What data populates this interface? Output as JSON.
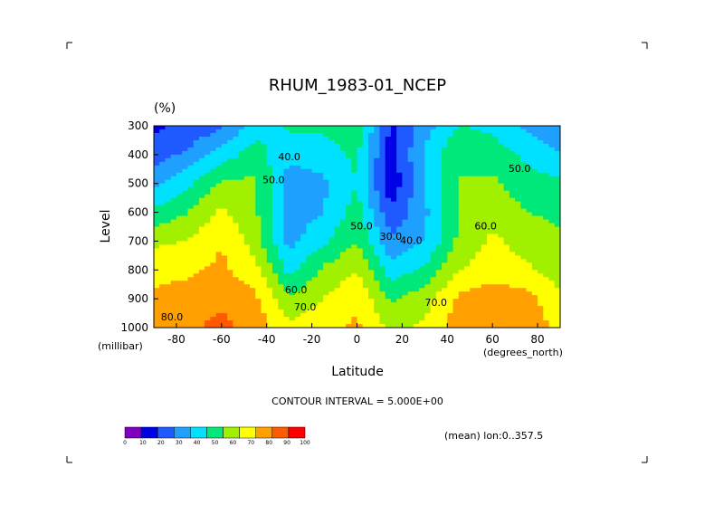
{
  "chart_data": {
    "type": "heatmap",
    "title": "RHUM_1983-01_NCEP",
    "units": "(%)",
    "xlabel": "Latitude",
    "ylabel": "Level",
    "x_units": "(degrees_north)",
    "y_units": "(millibar)",
    "xlim": [
      -90,
      90
    ],
    "ylim": [
      1000,
      300
    ],
    "x_ticks": [
      -80,
      -60,
      -40,
      -20,
      0,
      20,
      40,
      60,
      80
    ],
    "x_tick_labels": [
      "-80",
      "-60",
      "-40",
      "-20",
      "0",
      "20",
      "40",
      "60",
      "80"
    ],
    "y_ticks": [
      300,
      400,
      500,
      600,
      700,
      800,
      900,
      1000
    ],
    "y_tick_labels": [
      "300",
      "400",
      "500",
      "600",
      "700",
      "800",
      "900",
      "1000"
    ],
    "contour_interval_text": "CONTOUR INTERVAL = 5.000E+00",
    "mean_text": "(mean) lon:0..357.5",
    "colorbar": {
      "levels": [
        0,
        10,
        20,
        30,
        40,
        50,
        60,
        70,
        80,
        90,
        100
      ],
      "level_labels": [
        "0",
        "10",
        "20",
        "30",
        "40",
        "50",
        "60",
        "70",
        "80",
        "90",
        "100"
      ],
      "colors": [
        "#7f00bf",
        "#0000e6",
        "#1f5aff",
        "#1fa0ff",
        "#00e0ff",
        "#00e87a",
        "#a0f000",
        "#ffff00",
        "#ffa000",
        "#ff5a00",
        "#ff0000"
      ]
    },
    "contour_labels": [
      {
        "text": "50.0",
        "lat": -37,
        "lev": 500
      },
      {
        "text": "40.0",
        "lat": -30,
        "lev": 420
      },
      {
        "text": "50.0",
        "lat": 2,
        "lev": 660
      },
      {
        "text": "30.0",
        "lat": 15,
        "lev": 695
      },
      {
        "text": "40.0",
        "lat": 24,
        "lev": 710
      },
      {
        "text": "60.0",
        "lat": 57,
        "lev": 660
      },
      {
        "text": "50.0",
        "lat": 72,
        "lev": 460
      },
      {
        "text": "60.0",
        "lat": -27,
        "lev": 880
      },
      {
        "text": "70.0",
        "lat": -23,
        "lev": 940
      },
      {
        "text": "70.0",
        "lat": 35,
        "lev": 925
      },
      {
        "text": "80.0",
        "lat": -82,
        "lev": 975
      }
    ],
    "grid_lat": [
      -90,
      -75,
      -60,
      -45,
      -30,
      -15,
      0,
      15,
      30,
      45,
      60,
      75,
      90
    ],
    "grid_lev": [
      300,
      400,
      500,
      600,
      700,
      800,
      900,
      1000
    ],
    "values": [
      [
        18,
        22,
        28,
        45,
        52,
        52,
        58,
        18,
        35,
        50,
        48,
        38,
        30
      ],
      [
        25,
        32,
        45,
        55,
        42,
        45,
        52,
        15,
        42,
        60,
        55,
        48,
        40
      ],
      [
        38,
        48,
        62,
        62,
        35,
        38,
        50,
        12,
        40,
        60,
        62,
        55,
        52
      ],
      [
        52,
        60,
        72,
        62,
        34,
        40,
        55,
        22,
        38,
        60,
        66,
        60,
        58
      ],
      [
        68,
        70,
        80,
        65,
        37,
        48,
        60,
        32,
        40,
        62,
        72,
        66,
        62
      ],
      [
        76,
        78,
        82,
        74,
        46,
        62,
        70,
        45,
        52,
        70,
        75,
        72,
        65
      ],
      [
        82,
        85,
        88,
        82,
        62,
        70,
        78,
        58,
        66,
        82,
        86,
        84,
        72
      ],
      [
        84,
        88,
        93,
        86,
        72,
        76,
        82,
        68,
        72,
        85,
        88,
        86,
        78
      ]
    ]
  }
}
